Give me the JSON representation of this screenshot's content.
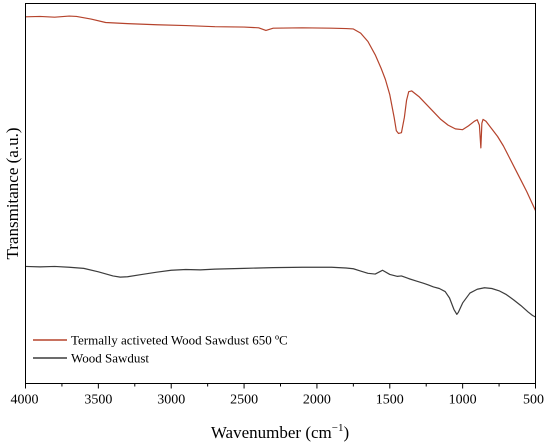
{
  "chart_data": {
    "type": "line",
    "title": "",
    "xlabel": "Wavenumber (cm",
    "xlabel_sup": "−1",
    "xlabel_close": ")",
    "ylabel": "Transmitance (a.u.)",
    "xlim": [
      4000,
      500
    ],
    "x_reversed": true,
    "ylim": [
      0,
      100
    ],
    "y_ticks_shown": false,
    "grid": false,
    "legend_position": "bottom-left",
    "x_ticks": [
      4000,
      3500,
      3000,
      2500,
      2000,
      1500,
      1000,
      500
    ],
    "x_tick_labels": [
      "4000",
      "3500",
      "3000",
      "2500",
      "2000",
      "1500",
      "1000",
      "500"
    ],
    "series": [
      {
        "name": "Termally activeted Wood Sawdust 650 ºC",
        "color": "#b5432c",
        "points": [
          [
            4000,
            96.5
          ],
          [
            3900,
            96.6
          ],
          [
            3800,
            96.4
          ],
          [
            3700,
            96.7
          ],
          [
            3650,
            96.6
          ],
          [
            3550,
            95.9
          ],
          [
            3450,
            95.0
          ],
          [
            3300,
            94.7
          ],
          [
            3100,
            94.4
          ],
          [
            2900,
            94.2
          ],
          [
            2700,
            93.9
          ],
          [
            2500,
            93.8
          ],
          [
            2400,
            93.6
          ],
          [
            2350,
            92.9
          ],
          [
            2300,
            93.5
          ],
          [
            2100,
            93.6
          ],
          [
            1900,
            93.5
          ],
          [
            1800,
            93.4
          ],
          [
            1750,
            93.3
          ],
          [
            1700,
            92.2
          ],
          [
            1650,
            90.0
          ],
          [
            1600,
            86.5
          ],
          [
            1560,
            83.0
          ],
          [
            1530,
            80.0
          ],
          [
            1500,
            76.0
          ],
          [
            1470,
            70.0
          ],
          [
            1455,
            66.5
          ],
          [
            1440,
            65.8
          ],
          [
            1420,
            66.0
          ],
          [
            1400,
            70.0
          ],
          [
            1385,
            74.5
          ],
          [
            1370,
            76.8
          ],
          [
            1350,
            77.0
          ],
          [
            1300,
            75.5
          ],
          [
            1250,
            73.5
          ],
          [
            1200,
            71.5
          ],
          [
            1150,
            69.5
          ],
          [
            1100,
            68.0
          ],
          [
            1050,
            67.0
          ],
          [
            1000,
            66.8
          ],
          [
            960,
            67.8
          ],
          [
            920,
            69.0
          ],
          [
            900,
            69.4
          ],
          [
            885,
            68.0
          ],
          [
            875,
            62.0
          ],
          [
            868,
            68.5
          ],
          [
            860,
            69.5
          ],
          [
            840,
            69.0
          ],
          [
            800,
            67.0
          ],
          [
            760,
            65.0
          ],
          [
            720,
            62.5
          ],
          [
            680,
            59.5
          ],
          [
            640,
            56.5
          ],
          [
            600,
            53.5
          ],
          [
            560,
            50.5
          ],
          [
            530,
            48.0
          ],
          [
            500,
            45.5
          ]
        ]
      },
      {
        "name": "Wood Sawdust",
        "color": "#3c3c3c",
        "points": [
          [
            4000,
            30.8
          ],
          [
            3900,
            30.7
          ],
          [
            3800,
            30.8
          ],
          [
            3700,
            30.6
          ],
          [
            3600,
            30.3
          ],
          [
            3500,
            29.4
          ],
          [
            3400,
            28.3
          ],
          [
            3350,
            28.0
          ],
          [
            3300,
            28.1
          ],
          [
            3200,
            28.7
          ],
          [
            3100,
            29.3
          ],
          [
            3000,
            29.8
          ],
          [
            2900,
            30.0
          ],
          [
            2800,
            29.9
          ],
          [
            2700,
            30.1
          ],
          [
            2500,
            30.3
          ],
          [
            2300,
            30.5
          ],
          [
            2100,
            30.6
          ],
          [
            1900,
            30.6
          ],
          [
            1800,
            30.4
          ],
          [
            1750,
            30.2
          ],
          [
            1700,
            29.6
          ],
          [
            1650,
            29.0
          ],
          [
            1600,
            28.8
          ],
          [
            1550,
            29.8
          ],
          [
            1500,
            28.7
          ],
          [
            1450,
            28.2
          ],
          [
            1420,
            28.3
          ],
          [
            1370,
            27.6
          ],
          [
            1320,
            27.0
          ],
          [
            1270,
            26.4
          ],
          [
            1240,
            26.0
          ],
          [
            1200,
            25.4
          ],
          [
            1160,
            25.0
          ],
          [
            1120,
            24.2
          ],
          [
            1090,
            22.5
          ],
          [
            1060,
            19.5
          ],
          [
            1040,
            18.2
          ],
          [
            1030,
            18.7
          ],
          [
            1000,
            21.2
          ],
          [
            950,
            23.8
          ],
          [
            900,
            24.8
          ],
          [
            850,
            25.2
          ],
          [
            800,
            25.0
          ],
          [
            750,
            24.4
          ],
          [
            700,
            23.4
          ],
          [
            650,
            22.0
          ],
          [
            600,
            20.5
          ],
          [
            550,
            18.8
          ],
          [
            520,
            17.9
          ],
          [
            500,
            17.5
          ]
        ]
      }
    ]
  }
}
